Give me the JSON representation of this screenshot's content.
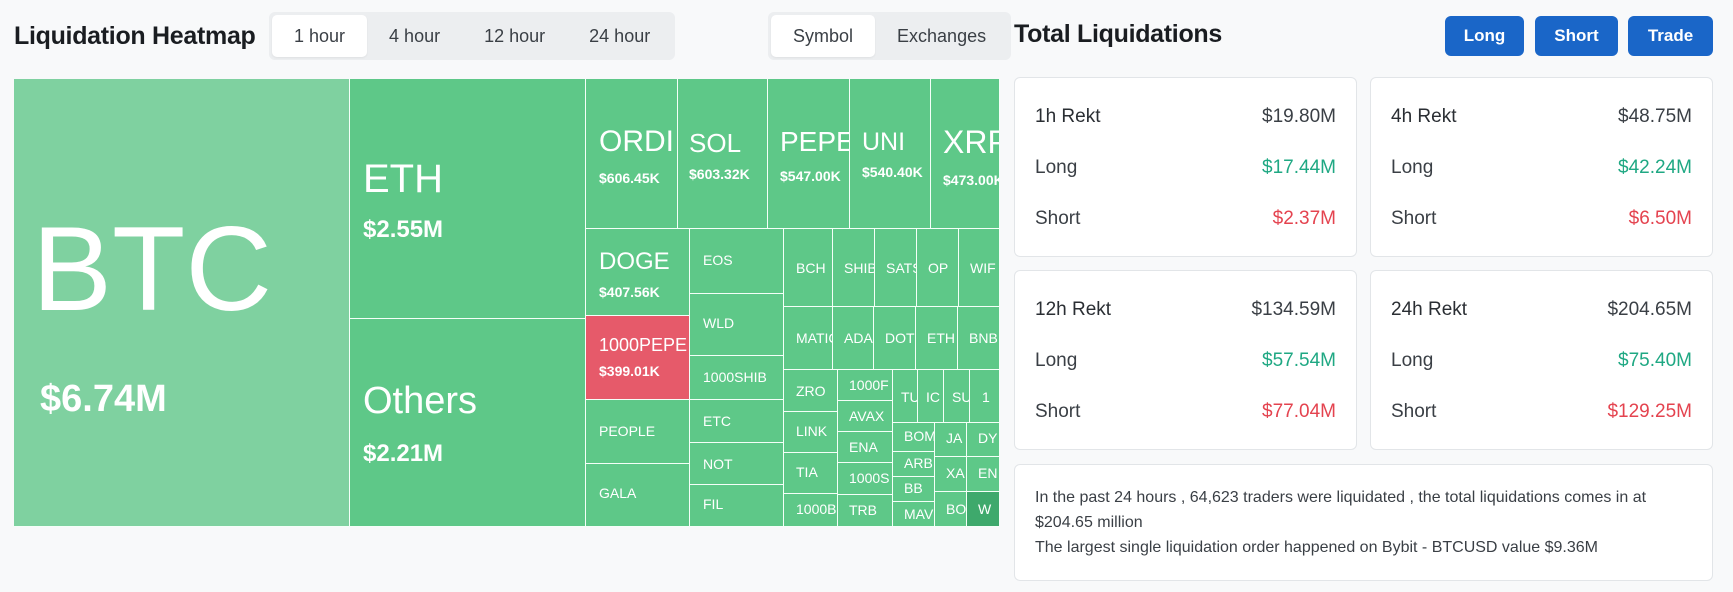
{
  "heatmap": {
    "title": "Liquidation Heatmap",
    "time_options": [
      "1 hour",
      "4 hour",
      "12 hour",
      "24 hour"
    ],
    "selected_time": "1 hour",
    "mode_options": [
      "Symbol",
      "Exchanges"
    ],
    "selected_mode": "Symbol",
    "tiles": {
      "btc": {
        "symbol": "BTC",
        "value": "$6.74M"
      },
      "eth": {
        "symbol": "ETH",
        "value": "$2.55M"
      },
      "others": {
        "symbol": "Others",
        "value": "$2.21M"
      },
      "ordi": {
        "symbol": "ORDI",
        "value": "$606.45K"
      },
      "sol": {
        "symbol": "SOL",
        "value": "$603.32K"
      },
      "pepe": {
        "symbol": "PEPE",
        "value": "$547.00K"
      },
      "uni": {
        "symbol": "UNI",
        "value": "$540.40K"
      },
      "xrp": {
        "symbol": "XRP",
        "value": "$473.00K"
      },
      "doge": {
        "symbol": "DOGE",
        "value": "$407.56K"
      },
      "pepe1000": {
        "symbol": "1000PEPE",
        "value": "$399.01K"
      },
      "people": {
        "symbol": "PEOPLE"
      },
      "gala": {
        "symbol": "GALA"
      },
      "eos": {
        "symbol": "EOS"
      },
      "wld": {
        "symbol": "WLD"
      },
      "shib1000": {
        "symbol": "1000SHIB"
      },
      "etc": {
        "symbol": "ETC"
      },
      "not": {
        "symbol": "NOT"
      },
      "fil": {
        "symbol": "FIL"
      },
      "bch": {
        "symbol": "BCH"
      },
      "shib": {
        "symbol": "SHIB"
      },
      "sats": {
        "symbol": "SATS"
      },
      "op": {
        "symbol": "OP"
      },
      "wif": {
        "symbol": "WIF"
      },
      "matic": {
        "symbol": "MATIC"
      },
      "ada": {
        "symbol": "ADA"
      },
      "dot": {
        "symbol": "DOT"
      },
      "ethfi": {
        "symbol": "ETH"
      },
      "bnb": {
        "symbol": "BNB"
      },
      "zro": {
        "symbol": "ZRO"
      },
      "f1000": {
        "symbol": "1000F"
      },
      "tu": {
        "symbol": "TU"
      },
      "ic": {
        "symbol": "IC"
      },
      "su": {
        "symbol": "SU"
      },
      "one": {
        "symbol": "1"
      },
      "link": {
        "symbol": "LINK"
      },
      "avax": {
        "symbol": "AVAX"
      },
      "ena": {
        "symbol": "ENA"
      },
      "bom": {
        "symbol": "BOM"
      },
      "ja": {
        "symbol": "JA"
      },
      "dy": {
        "symbol": "DY"
      },
      "arb": {
        "symbol": "ARB"
      },
      "tia": {
        "symbol": "TIA"
      },
      "s1000": {
        "symbol": "1000S"
      },
      "bb": {
        "symbol": "BB"
      },
      "xa": {
        "symbol": "XA"
      },
      "en": {
        "symbol": "EN"
      },
      "b1000": {
        "symbol": "1000B"
      },
      "trb": {
        "symbol": "TRB"
      },
      "mav": {
        "symbol": "MAV"
      },
      "bo": {
        "symbol": "BO"
      },
      "w": {
        "symbol": "W"
      }
    }
  },
  "totals": {
    "title": "Total Liquidations",
    "buttons": {
      "long": "Long",
      "short": "Short",
      "trade": "Trade"
    },
    "cards": [
      {
        "period": "1h Rekt",
        "total": "$19.80M",
        "long_label": "Long",
        "long": "$17.44M",
        "short_label": "Short",
        "short": "$2.37M"
      },
      {
        "period": "4h Rekt",
        "total": "$48.75M",
        "long_label": "Long",
        "long": "$42.24M",
        "short_label": "Short",
        "short": "$6.50M"
      },
      {
        "period": "12h Rekt",
        "total": "$134.59M",
        "long_label": "Long",
        "long": "$57.54M",
        "short_label": "Short",
        "short": "$77.04M"
      },
      {
        "period": "24h Rekt",
        "total": "$204.65M",
        "long_label": "Long",
        "long": "$75.40M",
        "short_label": "Short",
        "short": "$129.25M"
      }
    ],
    "summary_line1": "In the past 24 hours , 64,623 traders were liquidated , the total liquidations comes in at $204.65 million",
    "summary_line2": "The largest single liquidation order happened on Bybit - BTCUSD value $9.36M"
  },
  "colors": {
    "green_tile": "#5ec888",
    "btc_tile": "#7fd1a0",
    "red_tile": "#e65a6a",
    "accent_button": "#1a66c8",
    "long_text": "#1fa883",
    "short_text": "#e4434f"
  }
}
